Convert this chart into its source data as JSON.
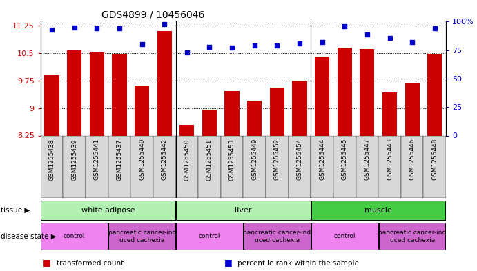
{
  "title": "GDS4899 / 10456046",
  "samples": [
    "GSM1255438",
    "GSM1255439",
    "GSM1255441",
    "GSM1255437",
    "GSM1255440",
    "GSM1255442",
    "GSM1255450",
    "GSM1255451",
    "GSM1255453",
    "GSM1255449",
    "GSM1255452",
    "GSM1255454",
    "GSM1255444",
    "GSM1255445",
    "GSM1255447",
    "GSM1255443",
    "GSM1255446",
    "GSM1255448"
  ],
  "bar_values": [
    9.9,
    10.57,
    10.52,
    10.47,
    9.62,
    11.1,
    8.55,
    8.95,
    9.47,
    9.2,
    9.55,
    9.75,
    10.4,
    10.65,
    10.6,
    9.42,
    9.68,
    10.47
  ],
  "scatter_values": [
    93,
    95,
    94,
    94,
    80,
    98,
    73,
    78,
    77,
    79,
    79,
    81,
    82,
    96,
    89,
    86,
    82,
    94
  ],
  "bar_color": "#cc0000",
  "scatter_color": "#0000cc",
  "ylim_left": [
    8.25,
    11.35
  ],
  "ylim_right": [
    0,
    100
  ],
  "yticks_left": [
    8.25,
    9.0,
    9.75,
    10.5,
    11.25
  ],
  "yticks_right": [
    0,
    25,
    50,
    75,
    100
  ],
  "ytick_labels_left": [
    "8.25",
    "9",
    "9.75",
    "10.5",
    "11.25"
  ],
  "ytick_labels_right": [
    "0",
    "25",
    "50",
    "75",
    "100%"
  ],
  "tissue_groups": [
    {
      "label": "white adipose",
      "start": 0,
      "end": 6,
      "facecolor": "#b2f0b2"
    },
    {
      "label": "liver",
      "start": 6,
      "end": 12,
      "facecolor": "#b2f0b2"
    },
    {
      "label": "muscle",
      "start": 12,
      "end": 18,
      "facecolor": "#44cc44"
    }
  ],
  "disease_groups": [
    {
      "label": "control",
      "start": 0,
      "end": 3,
      "facecolor": "#ee82ee"
    },
    {
      "label": "pancreatic cancer-ind\nuced cachexia",
      "start": 3,
      "end": 6,
      "facecolor": "#cc66cc"
    },
    {
      "label": "control",
      "start": 6,
      "end": 9,
      "facecolor": "#ee82ee"
    },
    {
      "label": "pancreatic cancer-ind\nuced cachexia",
      "start": 9,
      "end": 12,
      "facecolor": "#cc66cc"
    },
    {
      "label": "control",
      "start": 12,
      "end": 15,
      "facecolor": "#ee82ee"
    },
    {
      "label": "pancreatic cancer-ind\nuced cachexia",
      "start": 15,
      "end": 18,
      "facecolor": "#cc66cc"
    }
  ],
  "legend_items": [
    {
      "color": "#cc0000",
      "label": "transformed count"
    },
    {
      "color": "#0000cc",
      "label": "percentile rank within the sample"
    }
  ],
  "tissue_label": "tissue",
  "disease_label": "disease state",
  "xlabel_bg": "#d8d8d8",
  "n_samples": 18
}
